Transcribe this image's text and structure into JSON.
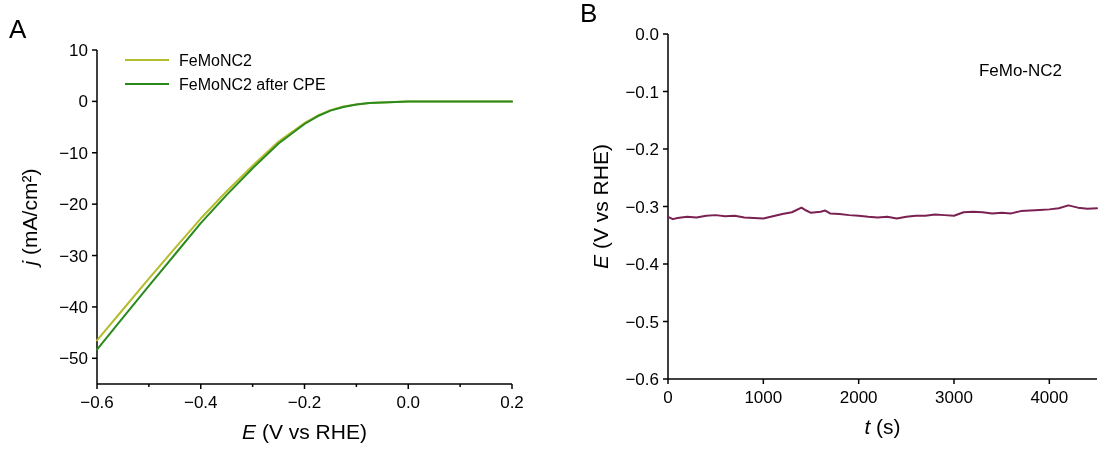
{
  "chart_data": [
    {
      "type": "line",
      "xlabel": "E (V vs RHE)",
      "ylabel": "j (mA/cm²)",
      "annotations": [
        "A"
      ],
      "legend": "top left",
      "xlim": [
        -0.6,
        0.2
      ],
      "ylim": [
        -55,
        10
      ],
      "xticks": [
        -0.6,
        {
          "value": -0.5,
          "label": null
        },
        -0.4,
        {
          "value": -0.3,
          "label": null
        },
        -0.2,
        {
          "value": -0.1,
          "label": null
        },
        {
          "value": 0,
          "label": "0.0"
        },
        {
          "value": 0.1,
          "label": null
        },
        0.2
      ],
      "yticks": [
        -50,
        -40,
        -30,
        -20,
        -10,
        0,
        10
      ],
      "x": [
        -0.6,
        -0.55,
        -0.5,
        -0.45,
        -0.4,
        -0.35,
        -0.3,
        -0.25,
        -0.2,
        -0.175,
        -0.15,
        -0.125,
        -0.1,
        -0.075,
        -0.05,
        0,
        0.1,
        0.2
      ],
      "series": [
        {
          "name": "FeMoNC2",
          "color": "#b3bd2c",
          "values": [
            -46.5,
            -40.5,
            -34.5,
            -28.6,
            -22.8,
            -17.5,
            -12.5,
            -7.8,
            -4.2,
            -2.8,
            -1.7,
            -1.0,
            -0.6,
            -0.3,
            -0.2,
            0,
            0,
            0
          ]
        },
        {
          "name": "FeMoNC2 after CPE",
          "color": "#2a8a1e",
          "values": [
            -48.3,
            -42.1,
            -35.9,
            -29.8,
            -23.7,
            -18.2,
            -13.0,
            -8.2,
            -4.4,
            -2.9,
            -1.8,
            -1.1,
            -0.6,
            -0.3,
            -0.2,
            0,
            0,
            0
          ]
        }
      ]
    },
    {
      "type": "line",
      "xlabel": "t (s)",
      "ylabel": "E (V vs RHE)",
      "annotations": [
        "B",
        "FeMo-NC2"
      ],
      "xlim": [
        0,
        4500
      ],
      "ylim": [
        -0.6,
        0
      ],
      "xticks": [
        0,
        1000,
        2000,
        3000,
        4000
      ],
      "yticks": [
        -0.6,
        -0.5,
        -0.4,
        -0.3,
        -0.2,
        -0.1,
        {
          "value": 0,
          "label": "0.0"
        }
      ],
      "x": [
        0,
        50,
        100,
        200,
        300,
        400,
        500,
        600,
        700,
        800,
        900,
        1000,
        1100,
        1200,
        1300,
        1400,
        1450,
        1500,
        1600,
        1650,
        1700,
        1800,
        1900,
        2000,
        2100,
        2200,
        2300,
        2400,
        2500,
        2600,
        2700,
        2800,
        2900,
        3000,
        3100,
        3200,
        3300,
        3400,
        3500,
        3600,
        3700,
        3800,
        3900,
        4000,
        4100,
        4200,
        4300,
        4400,
        4500
      ],
      "series": [
        {
          "color": "#7a2152",
          "values": [
            -0.318,
            -0.322,
            -0.32,
            -0.318,
            -0.319,
            -0.316,
            -0.315,
            -0.317,
            -0.316,
            -0.319,
            -0.32,
            -0.321,
            -0.317,
            -0.313,
            -0.31,
            -0.302,
            -0.307,
            -0.311,
            -0.309,
            -0.307,
            -0.312,
            -0.313,
            -0.315,
            -0.316,
            -0.318,
            -0.319,
            -0.318,
            -0.321,
            -0.318,
            -0.316,
            -0.316,
            -0.314,
            -0.315,
            -0.316,
            -0.31,
            -0.309,
            -0.31,
            -0.312,
            -0.311,
            -0.312,
            -0.308,
            -0.307,
            -0.306,
            -0.305,
            -0.303,
            -0.298,
            -0.302,
            -0.304,
            -0.303
          ]
        }
      ]
    }
  ]
}
